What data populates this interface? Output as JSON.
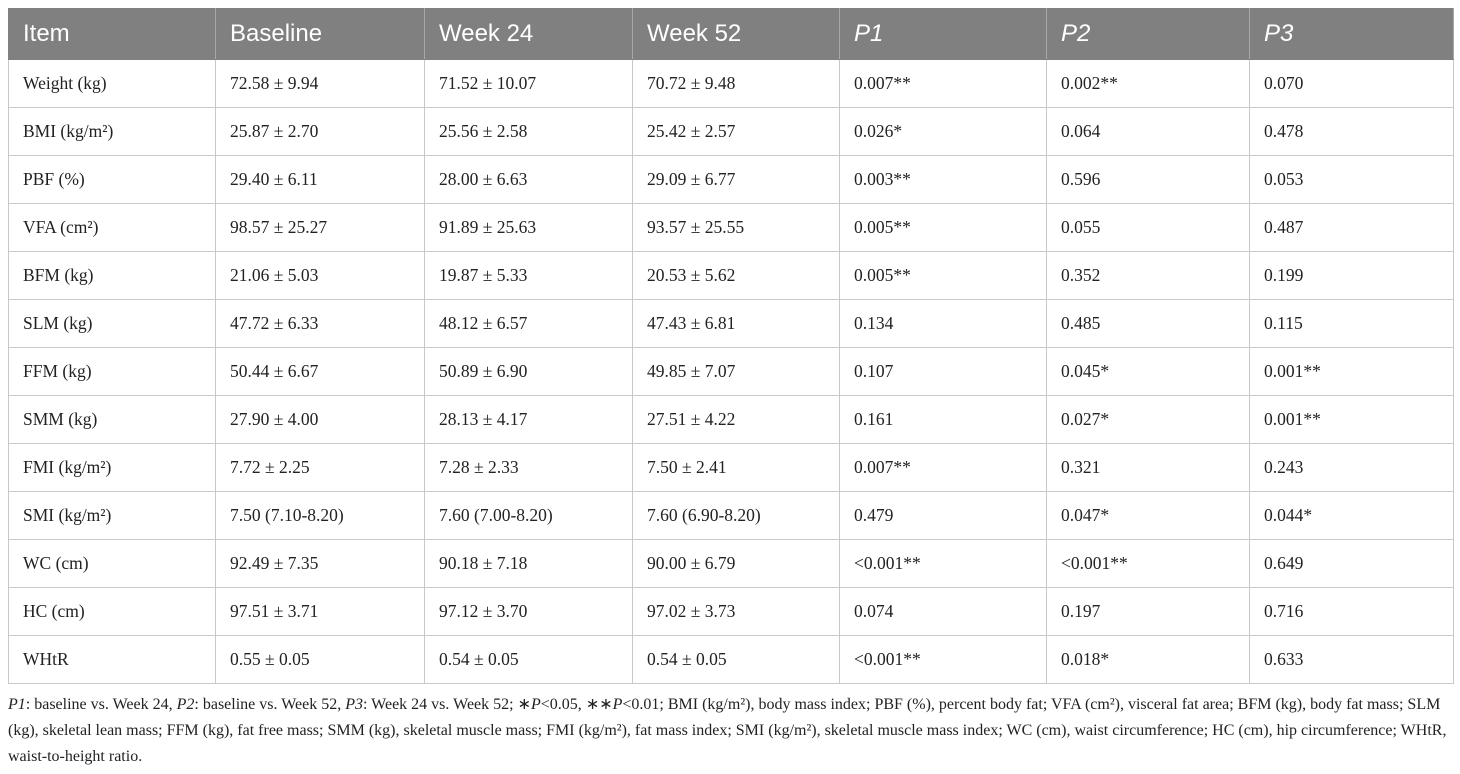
{
  "table": {
    "headers": [
      "Item",
      "Baseline",
      "Week 24",
      "Week 52",
      "P1",
      "P2",
      "P3"
    ],
    "rows": [
      [
        "Weight (kg)",
        "72.58 ± 9.94",
        "71.52 ± 10.07",
        "70.72 ± 9.48",
        "0.007**",
        "0.002**",
        "0.070"
      ],
      [
        "BMI (kg/m²)",
        "25.87 ± 2.70",
        "25.56 ± 2.58",
        "25.42 ± 2.57",
        "0.026*",
        "0.064",
        "0.478"
      ],
      [
        "PBF (%)",
        "29.40 ± 6.11",
        "28.00 ± 6.63",
        "29.09 ± 6.77",
        "0.003**",
        "0.596",
        "0.053"
      ],
      [
        "VFA (cm²)",
        "98.57 ± 25.27",
        "91.89 ± 25.63",
        "93.57 ± 25.55",
        "0.005**",
        "0.055",
        "0.487"
      ],
      [
        "BFM (kg)",
        "21.06 ± 5.03",
        "19.87 ± 5.33",
        "20.53 ± 5.62",
        "0.005**",
        "0.352",
        "0.199"
      ],
      [
        "SLM (kg)",
        "47.72 ± 6.33",
        "48.12 ± 6.57",
        "47.43 ± 6.81",
        "0.134",
        "0.485",
        "0.115"
      ],
      [
        "FFM (kg)",
        "50.44 ± 6.67",
        "50.89 ± 6.90",
        "49.85 ± 7.07",
        "0.107",
        "0.045*",
        "0.001**"
      ],
      [
        "SMM (kg)",
        "27.90 ± 4.00",
        "28.13 ± 4.17",
        "27.51 ± 4.22",
        "0.161",
        "0.027*",
        "0.001**"
      ],
      [
        "FMI (kg/m²)",
        "7.72 ± 2.25",
        "7.28 ± 2.33",
        "7.50 ± 2.41",
        "0.007**",
        "0.321",
        "0.243"
      ],
      [
        "SMI (kg/m²)",
        "7.50 (7.10-8.20)",
        "7.60 (7.00-8.20)",
        "7.60 (6.90-8.20)",
        "0.479",
        "0.047*",
        "0.044*"
      ],
      [
        "WC (cm)",
        "92.49 ± 7.35",
        "90.18 ± 7.18",
        "90.00 ± 6.79",
        "<0.001**",
        "<0.001**",
        "0.649"
      ],
      [
        "HC (cm)",
        "97.51 ± 3.71",
        "97.12 ± 3.70",
        "97.02 ± 3.73",
        "0.074",
        "0.197",
        "0.716"
      ],
      [
        "WHtR",
        "0.55 ± 0.05",
        "0.54 ± 0.05",
        "0.54 ± 0.05",
        "<0.001**",
        "0.018*",
        "0.633"
      ]
    ]
  },
  "footnote": {
    "p1_label": "P1",
    "p1_text": ": baseline vs. Week 24, ",
    "p2_label": "P2",
    "p2_text": ": baseline vs. Week 52, ",
    "p3_label": "P3",
    "p3_text": ": Week 24 vs. Week 52; ",
    "sig1_star": "∗",
    "sig1_p": "P",
    "sig1_text": "<0.05, ",
    "sig2_star": "∗∗",
    "sig2_p": "P",
    "sig2_text": "<0.01; BMI (kg/m²), body mass index; PBF (%), percent body fat; VFA (cm²), visceral fat area; BFM (kg), body fat mass; SLM (kg), skeletal lean mass; FFM (kg), fat free mass; SMM (kg), skeletal muscle mass; FMI (kg/m²), fat mass index; SMI (kg/m²), skeletal muscle mass index; WC (cm), waist circumference; HC (cm), hip circumference; WHtR, waist-to-height ratio."
  }
}
